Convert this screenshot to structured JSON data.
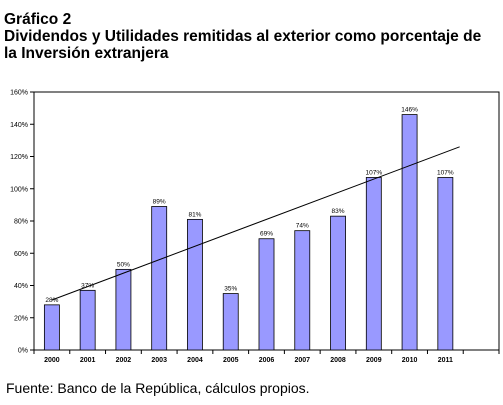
{
  "figure": {
    "label": "Gráfico 2",
    "title_line1": "Dividendos y Utilidades remitidas al exterior como porcentaje de",
    "title_line2": "la Inversión extranjera",
    "source": "Fuente: Banco de la República, cálculos propios."
  },
  "chart_data": {
    "type": "bar",
    "title": "Dividendos y Utilidades remitidas al exterior como porcentaje de la Inversión extranjera",
    "categories": [
      "2000",
      "2001",
      "2002",
      "2003",
      "2004",
      "2005",
      "2006",
      "2007",
      "2008",
      "2009",
      "2010",
      "2011"
    ],
    "values": [
      28,
      37,
      50,
      89,
      81,
      35,
      69,
      74,
      83,
      107,
      146,
      107
    ],
    "data_labels": [
      "28%",
      "37%",
      "50%",
      "89%",
      "81%",
      "35%",
      "69%",
      "74%",
      "83%",
      "107%",
      "146%",
      "107%"
    ],
    "y_ticks": [
      0,
      20,
      40,
      60,
      80,
      100,
      120,
      140,
      160
    ],
    "y_tick_labels": [
      "0%",
      "20%",
      "40%",
      "60%",
      "80%",
      "100%",
      "120%",
      "140%",
      "160%"
    ],
    "ylim": [
      0,
      160
    ],
    "trendline": {
      "type": "linear",
      "from": 31,
      "to": 126
    },
    "grid": false,
    "legend": "none",
    "colors": {
      "bar_fill": "#9999ff",
      "bar_stroke": "#000000",
      "trendline": "#000000",
      "axis": "#000000"
    }
  }
}
